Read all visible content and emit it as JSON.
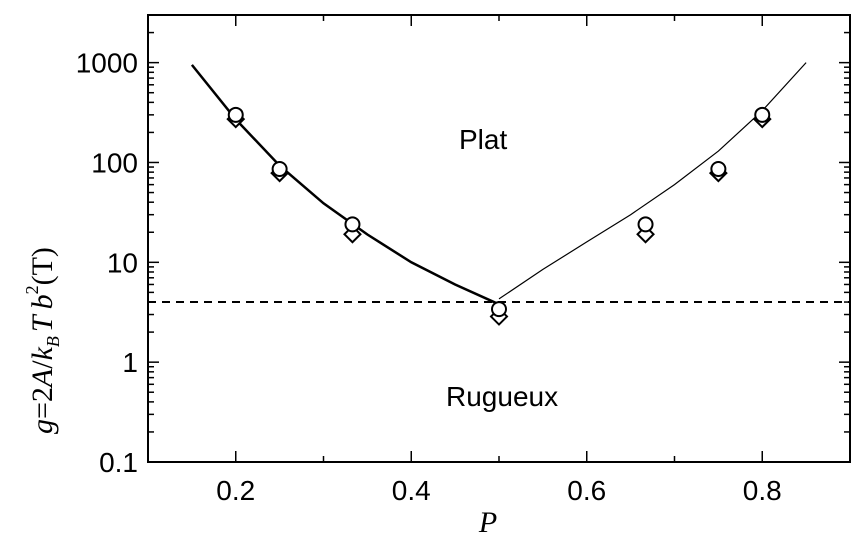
{
  "chart_data": {
    "type": "scatter",
    "xlabel": "P",
    "ylabel": {
      "g": "g",
      "eq": "=2",
      "A": "A",
      "slash": "/",
      "k": "k",
      "B": "B",
      "T": "T",
      "b": "b",
      "two": "2",
      "T2": "(T)"
    },
    "xlim": [
      0.1,
      0.9
    ],
    "ylim": [
      0.1,
      3000
    ],
    "y_scale": "log",
    "grid": false,
    "x_ticks": [
      "0.2",
      "0.4",
      "0.6",
      "0.8"
    ],
    "y_ticks": [
      "0.1",
      "1",
      "10",
      "100",
      "1000"
    ],
    "annotations": [
      "Plat",
      "Rugueux"
    ],
    "threshold": 4,
    "series": [
      {
        "marker": "circle",
        "x": [
          0.2,
          0.25,
          0.333,
          0.5,
          0.667,
          0.75,
          0.8
        ],
        "y": [
          300,
          86,
          24,
          3.4,
          24,
          86,
          300
        ]
      },
      {
        "marker": "diamond",
        "x": [
          0.2,
          0.25,
          0.333,
          0.5,
          0.667,
          0.75,
          0.8
        ],
        "y": [
          285,
          82,
          20,
          3.0,
          20,
          82,
          285
        ]
      },
      {
        "marker": "thick-line",
        "x": [
          0.15,
          0.2,
          0.25,
          0.3,
          0.35,
          0.4,
          0.45,
          0.5
        ],
        "y": [
          950,
          270,
          93,
          39,
          19,
          10,
          6,
          3.8
        ]
      },
      {
        "marker": "thin-line",
        "x": [
          0.5,
          0.55,
          0.6,
          0.65,
          0.7,
          0.75,
          0.8,
          0.85
        ],
        "y": [
          4.3,
          8.5,
          16,
          30,
          60,
          130,
          330,
          1000
        ]
      }
    ]
  }
}
